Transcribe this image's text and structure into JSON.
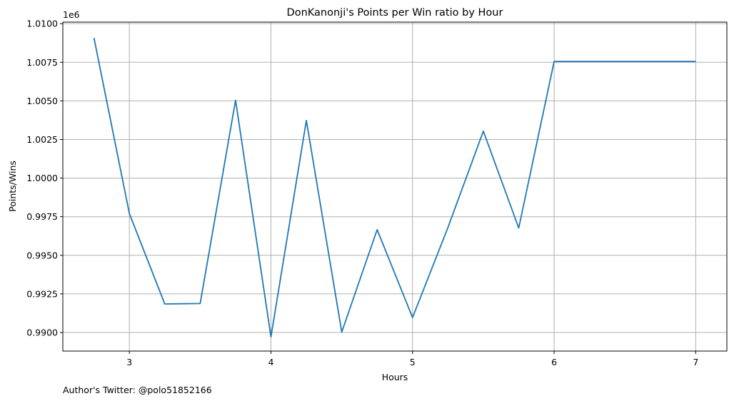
{
  "chart_data": {
    "type": "line",
    "title": "DonKanonji's Points per Win ratio by Hour",
    "xlabel": "Hours",
    "ylabel": "Points/Wins",
    "y_offset_label": "1e6",
    "xlim": [
      2.53,
      7.22
    ],
    "ylim": [
      988800,
      1010100
    ],
    "x_ticks": [
      3,
      4,
      5,
      6,
      7
    ],
    "x_tick_labels": [
      "3",
      "4",
      "5",
      "6",
      "7"
    ],
    "y_ticks": [
      990000,
      992500,
      995000,
      997500,
      1000000,
      1002500,
      1005000,
      1007500,
      1010000
    ],
    "y_tick_labels": [
      "0.9900",
      "0.9925",
      "0.9950",
      "0.9975",
      "1.0000",
      "1.0025",
      "1.0050",
      "1.0075",
      "1.0100"
    ],
    "grid": true,
    "line_color": "#1f77b4",
    "grid_color": "#b0b0b0",
    "series": [
      {
        "x": [
          2.75,
          3.0,
          3.25,
          3.5,
          3.75,
          4.0,
          4.25,
          4.5,
          4.75,
          5.0,
          5.25,
          5.5,
          5.75,
          6.0,
          6.25,
          6.5,
          6.75,
          7.0
        ],
        "values": [
          1009080,
          997700,
          991850,
          991880,
          1005040,
          989720,
          1003730,
          990030,
          996660,
          990970,
          996800,
          1003040,
          996770,
          1007550,
          1007550,
          1007550,
          1007550,
          1007550
        ]
      }
    ]
  },
  "footer": {
    "author_note": "Author's Twitter: @polo51852166"
  }
}
